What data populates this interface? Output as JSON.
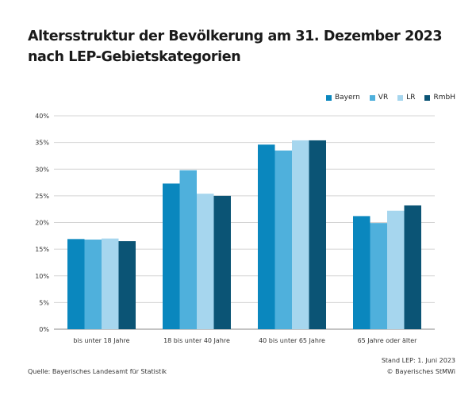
{
  "chart_data": {
    "type": "bar",
    "title_line1": "Altersstruktur der Bevölkerung am 31. Dezember 2023",
    "title_line2": "nach LEP-Gebietskategorien",
    "categories": [
      "bis unter 18 Jahre",
      "18 bis unter 40 Jahre",
      "40 bis unter 65 Jahre",
      "65 Jahre oder älter"
    ],
    "series": [
      {
        "name": "Bayern",
        "color": "#0a87be",
        "values": [
          16.9,
          27.3,
          34.6,
          21.2
        ]
      },
      {
        "name": "VR",
        "color": "#4fb0dc",
        "values": [
          16.8,
          29.8,
          33.5,
          19.9
        ]
      },
      {
        "name": "LR",
        "color": "#a6d6ee",
        "values": [
          17.0,
          25.4,
          35.4,
          22.2
        ]
      },
      {
        "name": "RmbH",
        "color": "#0b5475",
        "values": [
          16.5,
          25.0,
          35.4,
          23.2
        ]
      }
    ],
    "ylim": [
      0,
      40
    ],
    "yticks": [
      "0%",
      "5%",
      "10%",
      "15%",
      "20%",
      "25%",
      "30%",
      "35%",
      "40%"
    ],
    "ytick_values": [
      0,
      5,
      10,
      15,
      20,
      25,
      30,
      35,
      40
    ],
    "legend_position": "top-right",
    "grid": true
  },
  "footer": {
    "source": "Quelle: Bayerisches Landesamt für Statistik",
    "stand": "Stand LEP: 1. Juni 2023",
    "copyright": "© Bayerisches StMWi"
  }
}
